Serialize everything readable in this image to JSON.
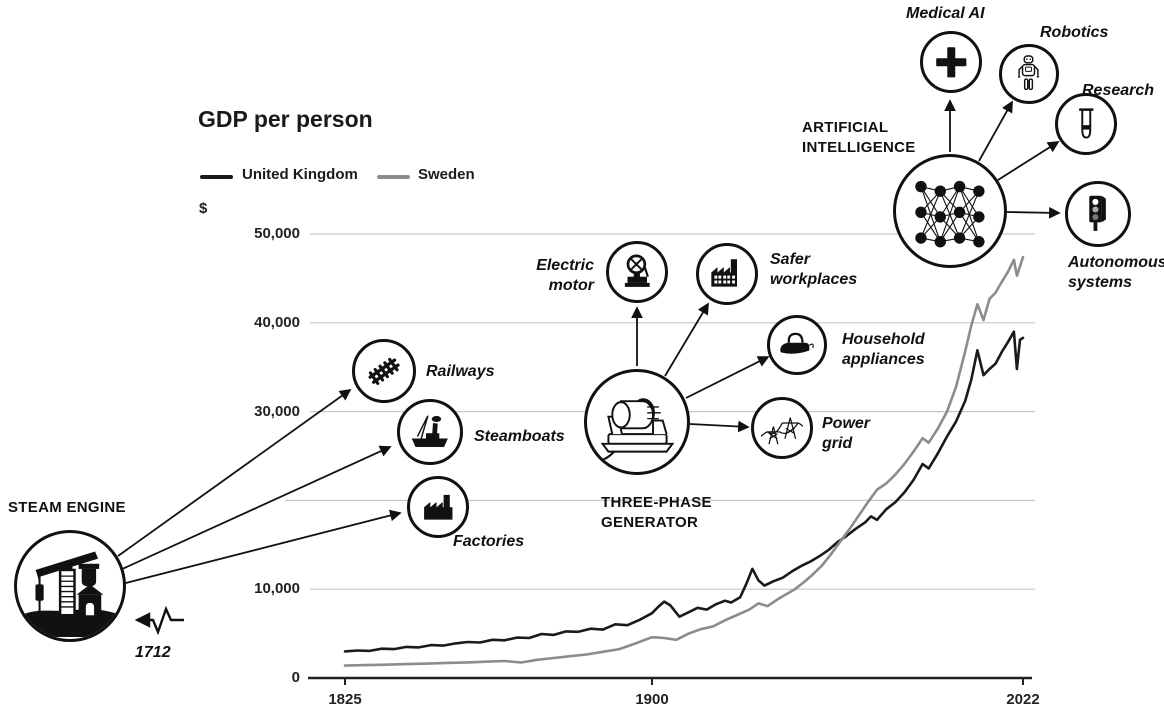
{
  "hubs": {
    "steam_engine": {
      "title": "STEAM ENGINE",
      "year_label": "1712",
      "spokes": [
        {
          "label": "Railways"
        },
        {
          "label": "Steamboats"
        },
        {
          "label": "Factories"
        }
      ]
    },
    "three_phase_generator": {
      "title": "THREE-PHASE GENERATOR",
      "spokes": [
        {
          "label": "Electric motor"
        },
        {
          "label": "Safer workplaces"
        },
        {
          "label": "Household appliances"
        },
        {
          "label": "Power grid"
        }
      ]
    },
    "artificial_intelligence": {
      "title": "ARTIFICIAL INTELLIGENCE",
      "spokes": [
        {
          "label": "Medical AI"
        },
        {
          "label": "Robotics"
        },
        {
          "label": "Research"
        },
        {
          "label": "Autonomous systems"
        }
      ]
    }
  },
  "chart_data": {
    "type": "line",
    "title": "GDP per person",
    "unit": "$",
    "xlim": [
      1825,
      2022
    ],
    "ylim": [
      0,
      50000
    ],
    "grid": true,
    "legend_position": "top-left",
    "x_ticks": [
      {
        "year": 1825,
        "label": "1825"
      },
      {
        "year": 1900,
        "label": "1900"
      },
      {
        "year": 2022,
        "label": "2022"
      }
    ],
    "y_ticks": [
      {
        "value": 0,
        "label": "0"
      },
      {
        "value": 10000,
        "label": "10,000"
      },
      {
        "value": 20000,
        "label": ""
      },
      {
        "value": 30000,
        "label": "30,000"
      },
      {
        "value": 40000,
        "label": "40,000"
      },
      {
        "value": 50000,
        "label": "50,000"
      }
    ],
    "series": [
      {
        "name": "United Kingdom",
        "color": "#1a1a1a",
        "points": [
          [
            1825,
            3000
          ],
          [
            1828,
            3100
          ],
          [
            1831,
            3050
          ],
          [
            1834,
            3300
          ],
          [
            1837,
            3250
          ],
          [
            1840,
            3500
          ],
          [
            1843,
            3450
          ],
          [
            1846,
            3700
          ],
          [
            1849,
            3650
          ],
          [
            1852,
            3900
          ],
          [
            1855,
            4050
          ],
          [
            1858,
            4000
          ],
          [
            1861,
            4300
          ],
          [
            1864,
            4250
          ],
          [
            1867,
            4550
          ],
          [
            1870,
            4500
          ],
          [
            1873,
            4950
          ],
          [
            1876,
            4850
          ],
          [
            1879,
            5250
          ],
          [
            1882,
            5200
          ],
          [
            1885,
            5550
          ],
          [
            1888,
            5450
          ],
          [
            1891,
            6050
          ],
          [
            1894,
            5950
          ],
          [
            1897,
            6550
          ],
          [
            1900,
            7300
          ],
          [
            1902,
            8000
          ],
          [
            1904,
            8600
          ],
          [
            1906,
            8200
          ],
          [
            1909,
            6900
          ],
          [
            1912,
            7400
          ],
          [
            1915,
            7900
          ],
          [
            1918,
            7700
          ],
          [
            1921,
            8300
          ],
          [
            1924,
            8700
          ],
          [
            1926,
            8500
          ],
          [
            1929,
            9100
          ],
          [
            1931,
            10600
          ],
          [
            1933,
            12300
          ],
          [
            1935,
            11000
          ],
          [
            1937,
            10400
          ],
          [
            1940,
            10900
          ],
          [
            1943,
            11300
          ],
          [
            1946,
            12000
          ],
          [
            1949,
            12600
          ],
          [
            1952,
            13100
          ],
          [
            1955,
            13700
          ],
          [
            1958,
            14400
          ],
          [
            1961,
            15300
          ],
          [
            1964,
            16000
          ],
          [
            1967,
            16800
          ],
          [
            1970,
            17500
          ],
          [
            1972,
            18200
          ],
          [
            1974,
            17800
          ],
          [
            1977,
            19000
          ],
          [
            1980,
            19800
          ],
          [
            1983,
            20900
          ],
          [
            1986,
            22300
          ],
          [
            1989,
            24100
          ],
          [
            1991,
            23600
          ],
          [
            1994,
            25300
          ],
          [
            1997,
            27200
          ],
          [
            2000,
            28900
          ],
          [
            2003,
            31200
          ],
          [
            2005,
            33600
          ],
          [
            2007,
            36900
          ],
          [
            2009,
            34100
          ],
          [
            2011,
            34800
          ],
          [
            2013,
            35400
          ],
          [
            2015,
            36700
          ],
          [
            2017,
            37800
          ],
          [
            2019,
            39000
          ],
          [
            2020,
            34800
          ],
          [
            2021,
            38100
          ],
          [
            2022,
            38300
          ]
        ]
      },
      {
        "name": "Sweden",
        "color": "#8c8c8c",
        "points": [
          [
            1825,
            1400
          ],
          [
            1830,
            1450
          ],
          [
            1835,
            1500
          ],
          [
            1840,
            1560
          ],
          [
            1845,
            1620
          ],
          [
            1850,
            1700
          ],
          [
            1855,
            1760
          ],
          [
            1860,
            1850
          ],
          [
            1864,
            1920
          ],
          [
            1868,
            1750
          ],
          [
            1872,
            2050
          ],
          [
            1876,
            2250
          ],
          [
            1880,
            2450
          ],
          [
            1884,
            2650
          ],
          [
            1888,
            2950
          ],
          [
            1892,
            3250
          ],
          [
            1896,
            3900
          ],
          [
            1900,
            4600
          ],
          [
            1904,
            4500
          ],
          [
            1908,
            4300
          ],
          [
            1912,
            5000
          ],
          [
            1916,
            5500
          ],
          [
            1920,
            5800
          ],
          [
            1924,
            6500
          ],
          [
            1928,
            7100
          ],
          [
            1932,
            7700
          ],
          [
            1935,
            8400
          ],
          [
            1938,
            8100
          ],
          [
            1941,
            8800
          ],
          [
            1944,
            9400
          ],
          [
            1947,
            10000
          ],
          [
            1950,
            10800
          ],
          [
            1953,
            11700
          ],
          [
            1956,
            12700
          ],
          [
            1959,
            14000
          ],
          [
            1962,
            15400
          ],
          [
            1965,
            16800
          ],
          [
            1968,
            18300
          ],
          [
            1971,
            19800
          ],
          [
            1974,
            21200
          ],
          [
            1977,
            21900
          ],
          [
            1980,
            22900
          ],
          [
            1983,
            24100
          ],
          [
            1986,
            25500
          ],
          [
            1989,
            27000
          ],
          [
            1991,
            26500
          ],
          [
            1994,
            28100
          ],
          [
            1997,
            30000
          ],
          [
            2000,
            32800
          ],
          [
            2003,
            36800
          ],
          [
            2005,
            39700
          ],
          [
            2007,
            42100
          ],
          [
            2009,
            40300
          ],
          [
            2011,
            42700
          ],
          [
            2013,
            43400
          ],
          [
            2015,
            44600
          ],
          [
            2017,
            45700
          ],
          [
            2019,
            47100
          ],
          [
            2020,
            45300
          ],
          [
            2022,
            47400
          ]
        ]
      }
    ]
  }
}
